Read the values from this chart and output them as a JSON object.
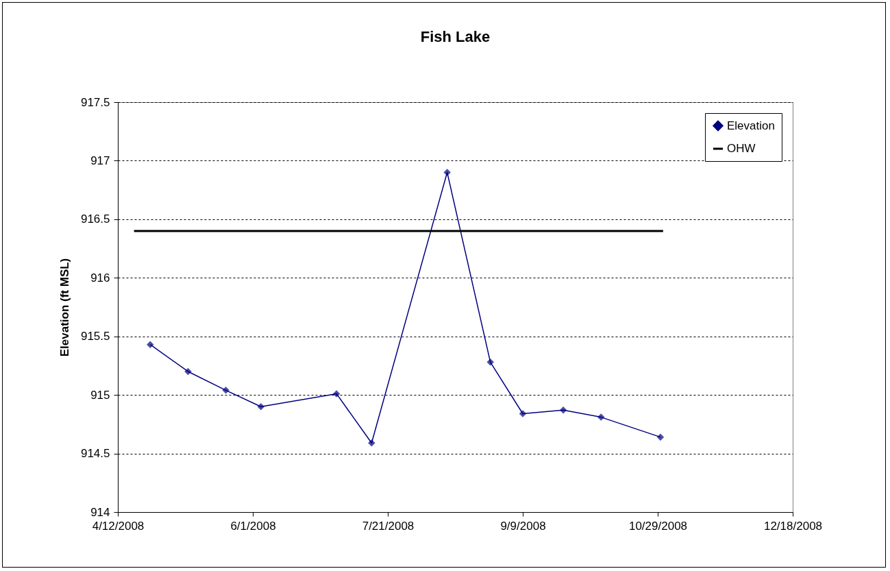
{
  "chart_data": {
    "type": "line",
    "title": "Fish Lake",
    "ylabel": "Elevation (ft MSL)",
    "xlim": [
      "2008-04-12",
      "2008-12-18"
    ],
    "xticks": [
      {
        "value": "2008-04-12",
        "label": "4/12/2008"
      },
      {
        "value": "2008-06-01",
        "label": "6/1/2008"
      },
      {
        "value": "2008-07-21",
        "label": "7/21/2008"
      },
      {
        "value": "2008-09-09",
        "label": "9/9/2008"
      },
      {
        "value": "2008-10-29",
        "label": "10/29/2008"
      },
      {
        "value": "2008-12-18",
        "label": "12/18/2008"
      }
    ],
    "ylim": [
      914,
      917.5
    ],
    "yticks": [
      914,
      914.5,
      915,
      915.5,
      916,
      916.5,
      917,
      917.5
    ],
    "grid": "y",
    "legend": "top right",
    "line_style": "solid",
    "series": [
      {
        "name": "Elevation",
        "color": "#000080",
        "marker": "diamond",
        "x": [
          "2008-04-24",
          "2008-05-08",
          "2008-05-22",
          "2008-06-04",
          "2008-07-02",
          "2008-07-15",
          "2008-08-12",
          "2008-08-28",
          "2008-09-09",
          "2008-09-24",
          "2008-10-08",
          "2008-10-30"
        ],
        "values": [
          915.43,
          915.2,
          915.04,
          914.9,
          915.01,
          914.59,
          916.9,
          915.28,
          914.84,
          914.87,
          914.81,
          914.64
        ]
      },
      {
        "name": "OHW",
        "color": "#000000",
        "marker": "none",
        "x": [
          "2008-04-18",
          "2008-10-31"
        ],
        "values": [
          916.4,
          916.4
        ]
      }
    ]
  }
}
